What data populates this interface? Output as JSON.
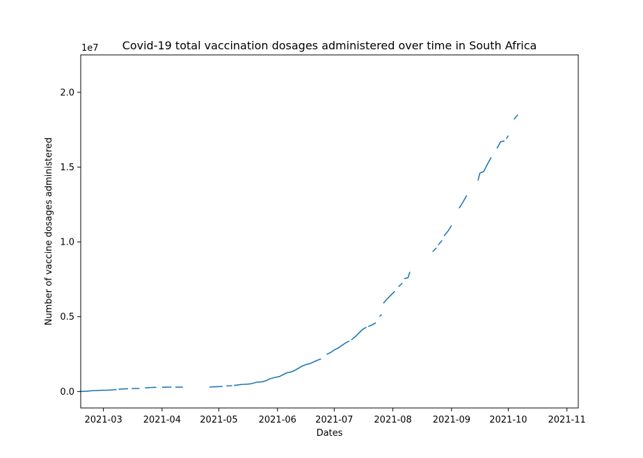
{
  "chart_data": {
    "type": "line",
    "title": "Covid-19 total vaccination dosages administered over time in South Africa",
    "xlabel": "Dates",
    "ylabel": "Number of vaccine dosages administered",
    "y_offset_label": "1e7",
    "y_scale": 10000000,
    "xlim": [
      "2021-02-17",
      "2021-11-07"
    ],
    "ylim": [
      -1100000,
      22500000
    ],
    "x_ticks": [
      "2021-03-01",
      "2021-04-01",
      "2021-05-01",
      "2021-06-01",
      "2021-07-01",
      "2021-08-01",
      "2021-09-01",
      "2021-10-01",
      "2021-11-01"
    ],
    "x_tick_labels": [
      "2021-03",
      "2021-04",
      "2021-05",
      "2021-06",
      "2021-07",
      "2021-08",
      "2021-09",
      "2021-10",
      "2021-11"
    ],
    "y_ticks": [
      0,
      5000000,
      10000000,
      15000000,
      20000000
    ],
    "y_tick_labels": [
      "0.0",
      "0.5",
      "1.0",
      "1.5",
      "2.0"
    ],
    "grid": false,
    "line_color": "#1f77b4",
    "series": [
      {
        "segments": [
          [
            [
              "2021-02-17",
              0
            ],
            [
              "2021-02-20",
              20000
            ],
            [
              "2021-02-24",
              60000
            ],
            [
              "2021-02-28",
              80000
            ],
            [
              "2021-03-03",
              90000
            ],
            [
              "2021-03-06",
              110000
            ],
            [
              "2021-03-08",
              130000
            ]
          ],
          [
            [
              "2021-03-09",
              150000
            ],
            [
              "2021-03-11",
              170000
            ],
            [
              "2021-03-14",
              185000
            ]
          ],
          [
            [
              "2021-03-16",
              190000
            ],
            [
              "2021-03-18",
              200000
            ],
            [
              "2021-03-20",
              210000
            ]
          ],
          [
            [
              "2021-03-23",
              240000
            ],
            [
              "2021-03-26",
              270000
            ],
            [
              "2021-03-29",
              280000
            ]
          ],
          [
            [
              "2021-04-01",
              285000
            ],
            [
              "2021-04-03",
              290000
            ],
            [
              "2021-04-06",
              292000
            ]
          ],
          [
            [
              "2021-04-08",
              292000
            ],
            [
              "2021-04-10",
              293000
            ],
            [
              "2021-04-12",
              293000
            ]
          ],
          [
            [
              "2021-04-26",
              295000
            ],
            [
              "2021-04-28",
              310000
            ],
            [
              "2021-04-30",
              320000
            ],
            [
              "2021-05-03",
              340000
            ]
          ],
          [
            [
              "2021-05-05",
              370000
            ],
            [
              "2021-05-07",
              385000
            ],
            [
              "2021-05-08",
              390000
            ]
          ],
          [
            [
              "2021-05-09",
              400000
            ],
            [
              "2021-05-12",
              450000
            ],
            [
              "2021-05-14",
              480000
            ],
            [
              "2021-05-17",
              500000
            ],
            [
              "2021-05-19",
              550000
            ],
            [
              "2021-05-21",
              620000
            ],
            [
              "2021-05-24",
              650000
            ],
            [
              "2021-05-26",
              720000
            ],
            [
              "2021-05-28",
              850000
            ],
            [
              "2021-05-31",
              950000
            ],
            [
              "2021-06-02",
              1000000
            ],
            [
              "2021-06-04",
              1130000
            ],
            [
              "2021-06-06",
              1250000
            ],
            [
              "2021-06-08",
              1300000
            ],
            [
              "2021-06-10",
              1400000
            ],
            [
              "2021-06-12",
              1550000
            ],
            [
              "2021-06-14",
              1700000
            ],
            [
              "2021-06-16",
              1800000
            ],
            [
              "2021-06-18",
              1860000
            ],
            [
              "2021-06-20",
              1970000
            ],
            [
              "2021-06-22",
              2080000
            ],
            [
              "2021-06-24",
              2180000
            ]
          ],
          [
            [
              "2021-06-27",
              2480000
            ],
            [
              "2021-06-29",
              2600000
            ],
            [
              "2021-07-01",
              2780000
            ],
            [
              "2021-07-03",
              2900000
            ],
            [
              "2021-07-05",
              3070000
            ],
            [
              "2021-07-07",
              3250000
            ],
            [
              "2021-07-09",
              3380000
            ]
          ],
          [
            [
              "2021-07-10",
              3450000
            ],
            [
              "2021-07-12",
              3650000
            ],
            [
              "2021-07-14",
              3900000
            ],
            [
              "2021-07-16",
              4150000
            ],
            [
              "2021-07-18",
              4300000
            ]
          ],
          [
            [
              "2021-07-19",
              4350000
            ],
            [
              "2021-07-21",
              4450000
            ],
            [
              "2021-07-23",
              4600000
            ]
          ],
          [
            [
              "2021-07-25",
              5000000
            ],
            [
              "2021-07-26",
              5150000
            ]
          ],
          [
            [
              "2021-07-27",
              5900000
            ],
            [
              "2021-07-29",
              6200000
            ],
            [
              "2021-07-31",
              6450000
            ],
            [
              "2021-08-02",
              6700000
            ]
          ],
          [
            [
              "2021-08-04",
              7000000
            ],
            [
              "2021-08-06",
              7250000
            ]
          ],
          [
            [
              "2021-08-07",
              7550000
            ],
            [
              "2021-08-09",
              7600000
            ],
            [
              "2021-08-10",
              8000000
            ]
          ],
          [
            [
              "2021-08-22",
              9350000
            ],
            [
              "2021-08-24",
              9600000
            ]
          ],
          [
            [
              "2021-08-25",
              9800000
            ],
            [
              "2021-08-27",
              10100000
            ]
          ],
          [
            [
              "2021-08-28",
              10400000
            ],
            [
              "2021-08-30",
              10700000
            ],
            [
              "2021-09-01",
              11100000
            ]
          ],
          [
            [
              "2021-09-05",
              12250000
            ],
            [
              "2021-09-07",
              12650000
            ],
            [
              "2021-09-09",
              13100000
            ]
          ],
          [
            [
              "2021-09-15",
              14100000
            ],
            [
              "2021-09-16",
              14600000
            ],
            [
              "2021-09-18",
              14700000
            ],
            [
              "2021-09-20",
              15200000
            ],
            [
              "2021-09-22",
              15650000
            ]
          ],
          [
            [
              "2021-09-25",
              16250000
            ],
            [
              "2021-09-27",
              16700000
            ],
            [
              "2021-09-29",
              16750000
            ]
          ],
          [
            [
              "2021-09-30",
              16900000
            ],
            [
              "2021-10-01",
              17100000
            ]
          ],
          [
            [
              "2021-10-04",
              18200000
            ],
            [
              "2021-10-06",
              18500000
            ]
          ]
        ]
      }
    ]
  }
}
